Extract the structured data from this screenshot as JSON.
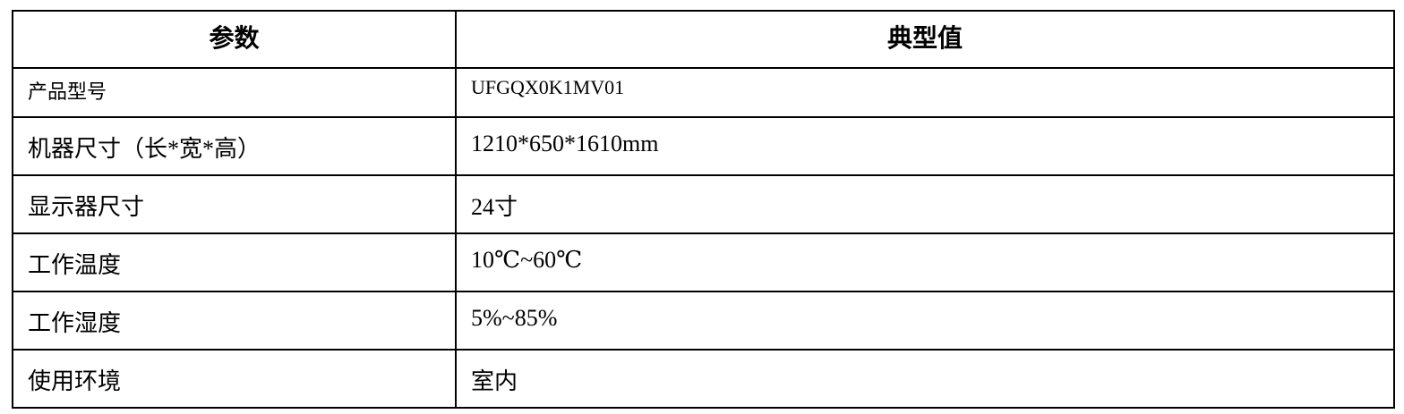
{
  "table": {
    "headers": [
      "参数",
      "典型值"
    ],
    "rows": [
      {
        "param": "产品型号",
        "value": "UFGQX0K1MV01"
      },
      {
        "param": "机器尺寸（长*宽*高）",
        "value": "1210*650*1610mm"
      },
      {
        "param": "显示器尺寸",
        "value": "24寸"
      },
      {
        "param": "工作温度",
        "value": "10℃~60℃"
      },
      {
        "param": "工作湿度",
        "value": "5%~85%"
      },
      {
        "param": "使用环境",
        "value": "室内"
      }
    ]
  }
}
